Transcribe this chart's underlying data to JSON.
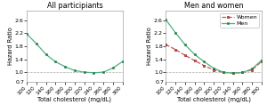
{
  "title_left": "All participiants",
  "title_right": "Men and women",
  "xlabel": "Total cholesterol (mg/dL)",
  "ylabel": "Hazard Ratio",
  "xlim": [
    100,
    300
  ],
  "ylim": [
    0.7,
    2.9
  ],
  "yticks": [
    1.0,
    1.4,
    1.8,
    2.2,
    2.6
  ],
  "ytick_labels": [
    "1.0",
    "1.4",
    "1.8",
    "2.2",
    "2.6"
  ],
  "xticks": [
    100,
    120,
    140,
    160,
    180,
    200,
    220,
    240,
    260,
    280,
    300
  ],
  "ylabel_0_7": "0.7",
  "ylabel_0_7_y": 0.7,
  "all_x": [
    100,
    120,
    140,
    160,
    180,
    200,
    220,
    240,
    260,
    280,
    300
  ],
  "all_y": [
    2.18,
    1.88,
    1.55,
    1.32,
    1.17,
    1.05,
    1.0,
    0.98,
    1.0,
    1.13,
    1.33
  ],
  "men_x": [
    100,
    120,
    140,
    160,
    180,
    200,
    220,
    240,
    260,
    280,
    300
  ],
  "men_y": [
    2.62,
    2.22,
    1.85,
    1.55,
    1.32,
    1.12,
    1.0,
    0.97,
    0.99,
    1.1,
    1.37
  ],
  "women_x": [
    100,
    120,
    140,
    160,
    180,
    200,
    220,
    240,
    260,
    280,
    300
  ],
  "women_y": [
    1.85,
    1.7,
    1.52,
    1.36,
    1.2,
    1.07,
    0.99,
    0.97,
    0.99,
    1.07,
    1.33
  ],
  "color_all": "#4db37e",
  "color_men": "#4db37e",
  "color_women": "#cc5555",
  "marker_all": "#2d7a4a",
  "marker_men": "#2d7a4a",
  "marker_women": "#cc5555",
  "ref_y": 1.0,
  "title_fontsize": 5.8,
  "axis_fontsize": 4.8,
  "tick_fontsize": 4.5,
  "legend_fontsize": 4.5
}
